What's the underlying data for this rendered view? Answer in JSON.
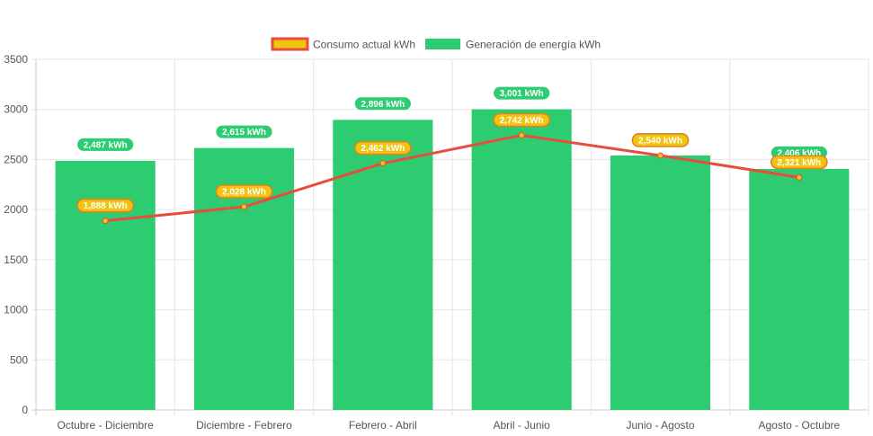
{
  "chart_data": {
    "type": "bar",
    "categories": [
      "Octubre - Diciembre",
      "Diciembre - Febrero",
      "Febrero - Abril",
      "Abril - Junio",
      "Junio - Agosto",
      "Agosto - Octubre"
    ],
    "series": [
      {
        "name": "Consumo actual kWh",
        "type": "line",
        "values": [
          1888,
          2028,
          2462,
          2742,
          2540,
          2321
        ],
        "labels": [
          "1,888 kWh",
          "2,028 kWh",
          "2,462 kWh",
          "2,742 kWh",
          "2,540 kWh",
          "2,321 kWh"
        ],
        "line_color": "#e74c3c",
        "badge_color": "#f1c40f"
      },
      {
        "name": "Generación de energía kWh",
        "type": "bar",
        "values": [
          2487,
          2615,
          2896,
          3001,
          2540,
          2406
        ],
        "labels": [
          "2,487 kWh",
          "2,615 kWh",
          "2,896 kWh",
          "3,001 kWh",
          "2,540 kWh",
          "2,406 kWh"
        ],
        "color": "#2ecc71"
      }
    ],
    "yticks": [
      "0",
      "500",
      "1000",
      "1500",
      "2000",
      "2500",
      "3000",
      "3500"
    ],
    "ylim": [
      0,
      3500
    ],
    "title": "",
    "xlabel": "",
    "ylabel": "",
    "grid": true,
    "legend_position": "top-center"
  }
}
